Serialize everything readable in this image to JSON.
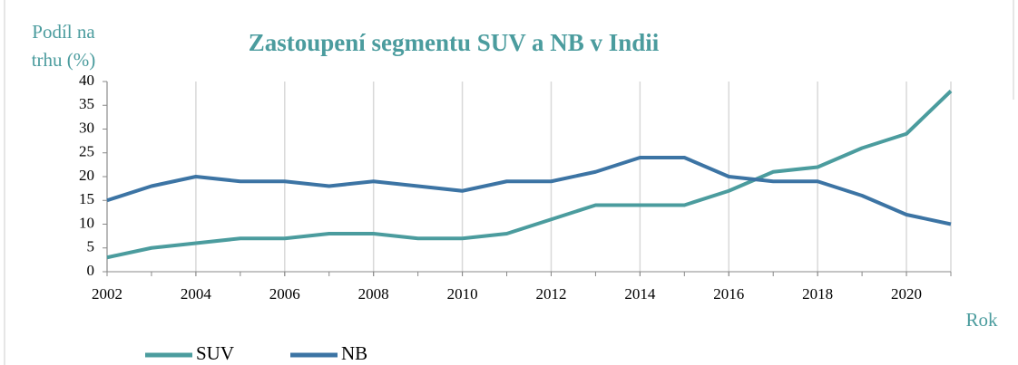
{
  "chart_data": {
    "type": "line",
    "title": "Zastoupení segmentu SUV a NB v Indii",
    "y_label": [
      "Podíl na",
      "trhu (%)"
    ],
    "x_label": "Rok",
    "x": [
      2002,
      2003,
      2004,
      2005,
      2006,
      2007,
      2008,
      2009,
      2010,
      2011,
      2012,
      2013,
      2014,
      2015,
      2016,
      2017,
      2018,
      2019,
      2020,
      2021
    ],
    "series": [
      {
        "name": "SUV",
        "color": "#4b9c9e",
        "values": [
          3,
          5,
          6,
          7,
          7,
          8,
          8,
          7,
          7,
          8,
          11,
          14,
          14,
          14,
          17,
          21,
          22,
          26,
          29,
          38
        ]
      },
      {
        "name": "NB",
        "color": "#3c74a4",
        "values": [
          15,
          18,
          20,
          19,
          19,
          18,
          19,
          18,
          17,
          19,
          19,
          21,
          24,
          24,
          20,
          19,
          19,
          16,
          12,
          10
        ]
      }
    ],
    "xlim": [
      2002,
      2021
    ],
    "xticks": [
      2002,
      2004,
      2006,
      2008,
      2010,
      2012,
      2014,
      2016,
      2018,
      2020
    ],
    "ylim": [
      0,
      40
    ],
    "yticks": [
      0,
      5,
      10,
      15,
      20,
      25,
      30,
      35,
      40
    ],
    "grid": true,
    "legend": "bottom"
  }
}
